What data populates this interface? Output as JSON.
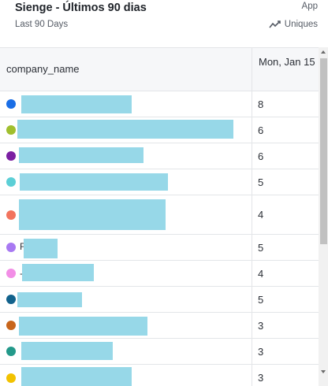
{
  "header": {
    "title": "Sienge - Últimos 90 dias",
    "subtitle": "Last 90 Days",
    "app_label": "App",
    "metric_label": "Uniques",
    "metric_icon": "trend-line-icon"
  },
  "table": {
    "columns": [
      "company_name",
      "Mon, Jan 15"
    ],
    "rows": [
      {
        "dot_color": "#1a6ee6",
        "value": "8"
      },
      {
        "dot_color": "#a0bf2e",
        "value": "6"
      },
      {
        "dot_color": "#7b1fa2",
        "value": "6"
      },
      {
        "dot_color": "#5ccfd6",
        "value": "5"
      },
      {
        "dot_color": "#f2745e",
        "value": "4"
      },
      {
        "dot_color": "#a879f2",
        "value": "5",
        "glyph": "F"
      },
      {
        "dot_color": "#f28ee6",
        "value": "4",
        "glyph": "-"
      },
      {
        "dot_color": "#12628c",
        "value": "5"
      },
      {
        "dot_color": "#c8651b",
        "value": "3"
      },
      {
        "dot_color": "#23998a",
        "value": "3"
      },
      {
        "dot_color": "#f2c200",
        "value": "3"
      }
    ]
  },
  "colors": {
    "redaction": "#97d8e8",
    "header_bg": "#f6f7f9",
    "border": "#e3e5e8"
  }
}
